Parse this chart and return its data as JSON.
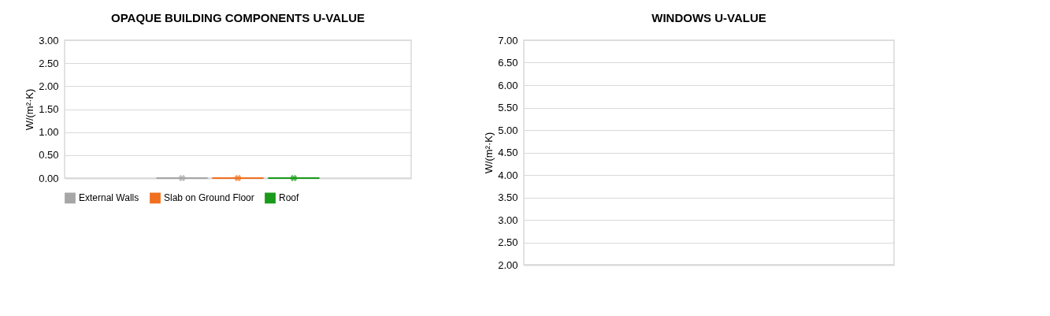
{
  "chart_data": [
    {
      "type": "box",
      "title": "OPAQUE BUILDING COMPONENTS U-VALUE",
      "ylabel": "W/(m²·K)",
      "categories": [
        null
      ],
      "series": [
        {
          "name": "External Walls",
          "color": "#a6a6a6",
          "boxes": [
            {
              "low": 0,
              "q1": 0,
              "median": 0,
              "q3": 0,
              "high": 0,
              "mean": 0
            }
          ]
        },
        {
          "name": "Slab on Ground Floor",
          "color": "#f07020",
          "boxes": [
            {
              "low": 0,
              "q1": 0,
              "median": 0,
              "q3": 0,
              "high": 0,
              "mean": 0
            }
          ]
        },
        {
          "name": "Roof",
          "color": "#1a9a1a",
          "boxes": [
            {
              "low": 0,
              "q1": 0,
              "median": 0,
              "q3": 0,
              "high": 0,
              "mean": 0
            }
          ]
        }
      ],
      "ylim": [
        0,
        3
      ],
      "yticks": [
        {
          "value": 0,
          "label": "0.00"
        },
        {
          "value": 0.5,
          "label": "0.50"
        },
        {
          "value": 1,
          "label": "1.00"
        },
        {
          "value": 1.5,
          "label": "1.50"
        },
        {
          "value": 2,
          "label": "2.00"
        },
        {
          "value": 2.5,
          "label": "2.50"
        },
        {
          "value": 3,
          "label": "3.00"
        }
      ],
      "grid": "y",
      "legend": "bottom",
      "tick_labels": "y"
    },
    {
      "type": "box",
      "title": "WINDOWS U-VALUE",
      "ylabel": "W/(m²·K)",
      "categories": [
        null
      ],
      "ylim": [
        2,
        7
      ],
      "yticks": [
        {
          "value": 2,
          "label": "2.00"
        },
        {
          "value": 2.5,
          "label": "2.50"
        },
        {
          "value": 3,
          "label": "3.00"
        },
        {
          "value": 3.5,
          "label": "3.50"
        },
        {
          "value": 4,
          "label": "4.00"
        },
        {
          "value": 4.5,
          "label": "4.50"
        },
        {
          "value": 5,
          "label": "5.00"
        },
        {
          "value": 5.5,
          "label": "5.50"
        },
        {
          "value": 6,
          "label": "6.00"
        },
        {
          "value": 6.5,
          "label": "6.50"
        },
        {
          "value": 7,
          "label": "7.00"
        }
      ],
      "grid": "y",
      "tick_labels": "y"
    }
  ]
}
